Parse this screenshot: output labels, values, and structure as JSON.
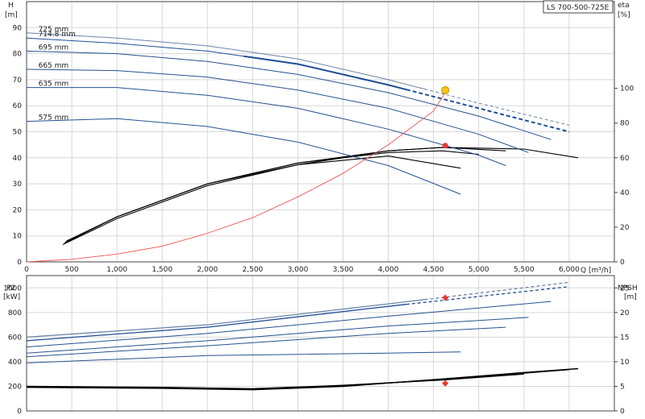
{
  "chart_data": [
    {
      "type": "line",
      "title": "LS 700-500-725E",
      "x_label": "Q [m³/h]",
      "y_label": "H\n[m]",
      "y2_label": "eta\n[%]",
      "xlim": [
        0,
        6500
      ],
      "ylim": [
        0,
        100
      ],
      "y2lim": [
        0,
        150
      ],
      "x_ticks": [
        "0",
        "500",
        "1,000",
        "1,500",
        "2,000",
        "2,500",
        "3,000",
        "3,500",
        "4,000",
        "4,500",
        "5,000",
        "5,500",
        "6,000"
      ],
      "x_tick_values": [
        0,
        500,
        1000,
        1500,
        2000,
        2500,
        3000,
        3500,
        4000,
        4500,
        5000,
        5500,
        6000
      ],
      "y_ticks": [
        "0",
        "10",
        "20",
        "30",
        "40",
        "50",
        "60",
        "70",
        "80",
        "90"
      ],
      "y_tick_values": [
        0,
        10,
        20,
        30,
        40,
        50,
        60,
        70,
        80,
        90
      ],
      "y2_ticks": [
        "0",
        "20",
        "40",
        "60",
        "80",
        "100"
      ],
      "y2_tick_values": [
        0,
        20,
        40,
        60,
        80,
        100
      ],
      "grid": true,
      "series": [
        {
          "name": "725 mm",
          "color": "#6a84a8",
          "dash_from": 4400,
          "points": [
            [
              0,
              88
            ],
            [
              1000,
              86
            ],
            [
              2000,
              83
            ],
            [
              3000,
              78
            ],
            [
              4000,
              70
            ],
            [
              5000,
              61
            ],
            [
              6000,
              52.5
            ]
          ]
        },
        {
          "name": "714.8 mm",
          "color": "#1f4e96",
          "bold_from": 2400,
          "dash_from": 4200,
          "points": [
            [
              0,
              86
            ],
            [
              1000,
              84
            ],
            [
              2000,
              81
            ],
            [
              3000,
              76
            ],
            [
              4000,
              68
            ],
            [
              5000,
              59
            ],
            [
              6000,
              50
            ]
          ]
        },
        {
          "name": "695 mm",
          "color": "#27528f",
          "points": [
            [
              0,
              81
            ],
            [
              1000,
              80
            ],
            [
              2000,
              77
            ],
            [
              3000,
              72
            ],
            [
              4000,
              65
            ],
            [
              5000,
              56
            ],
            [
              5800,
              47
            ]
          ]
        },
        {
          "name": "665 mm",
          "color": "#27528f",
          "points": [
            [
              0,
              74
            ],
            [
              1000,
              73.5
            ],
            [
              2000,
              71
            ],
            [
              3000,
              66
            ],
            [
              4000,
              59
            ],
            [
              5000,
              49
            ],
            [
              5550,
              42
            ]
          ]
        },
        {
          "name": "635 mm",
          "color": "#27528f",
          "points": [
            [
              0,
              67
            ],
            [
              1000,
              67
            ],
            [
              2000,
              64
            ],
            [
              3000,
              59
            ],
            [
              4000,
              51
            ],
            [
              5000,
              41
            ],
            [
              5300,
              37
            ]
          ]
        },
        {
          "name": "575 mm",
          "color": "#27528f",
          "points": [
            [
              0,
              54
            ],
            [
              1000,
              55
            ],
            [
              2000,
              52
            ],
            [
              3000,
              46
            ],
            [
              4000,
              37
            ],
            [
              4800,
              26
            ]
          ]
        },
        {
          "name": "",
          "color": "#ef5350",
          "role": "system-curve",
          "points": [
            [
              0,
              0
            ],
            [
              500,
              1
            ],
            [
              1000,
              3
            ],
            [
              1500,
              6
            ],
            [
              2000,
              11
            ],
            [
              2500,
              17
            ],
            [
              3000,
              25
            ],
            [
              3500,
              34
            ],
            [
              4000,
              45
            ],
            [
              4500,
              58
            ],
            [
              4650,
              66
            ]
          ]
        }
      ],
      "efficiency_curves": [
        {
          "color": "#000",
          "points": [
            [
              400,
              10
            ],
            [
              1000,
              25
            ],
            [
              2000,
              44
            ],
            [
              3000,
              56
            ],
            [
              4000,
              64
            ],
            [
              4600,
              66
            ],
            [
              5500,
              65
            ],
            [
              6100,
              60
            ]
          ]
        },
        {
          "color": "#000",
          "points": [
            [
              420,
              11
            ],
            [
              1000,
              26
            ],
            [
              2000,
              45
            ],
            [
              3000,
              57
            ],
            [
              4000,
              64
            ],
            [
              4600,
              66
            ],
            [
              5300,
              64
            ]
          ]
        },
        {
          "color": "#000",
          "points": [
            [
              440,
              12
            ],
            [
              1000,
              26
            ],
            [
              2000,
              45
            ],
            [
              3000,
              57
            ],
            [
              4000,
              63
            ],
            [
              4600,
              64
            ],
            [
              5000,
              62
            ]
          ]
        },
        {
          "color": "#000",
          "points": [
            [
              460,
              12
            ],
            [
              1000,
              26
            ],
            [
              2000,
              45
            ],
            [
              3000,
              56
            ],
            [
              4000,
              61
            ],
            [
              4800,
              54
            ]
          ]
        }
      ],
      "points": [
        {
          "name": "duty point",
          "x": 4630,
          "y": 66,
          "color": "#f5c518"
        },
        {
          "name": "efficiency point",
          "x": 4630,
          "y2": 67,
          "color": "#e53935"
        }
      ]
    },
    {
      "type": "line",
      "title": "",
      "y_label": "P2\n[kW]",
      "y2_label": "NPSH\n[m]",
      "xlim": [
        0,
        6500
      ],
      "ylim": [
        0,
        1100
      ],
      "y2lim": [
        0,
        27.5
      ],
      "y_ticks": [
        "0",
        "200",
        "400",
        "600",
        "800",
        "1000"
      ],
      "y_tick_values": [
        0,
        200,
        400,
        600,
        800,
        1000
      ],
      "y2_ticks": [
        "0",
        "5",
        "10",
        "15",
        "20",
        "25"
      ],
      "y2_tick_values": [
        0,
        5,
        10,
        15,
        20,
        25
      ],
      "grid": true,
      "power_curves": [
        {
          "color": "#6a84a8",
          "points": [
            [
              0,
              600
            ],
            [
              2000,
              700
            ],
            [
              4000,
              870
            ],
            [
              6000,
              1045
            ]
          ],
          "dash_from": 4400
        },
        {
          "color": "#1f4e96",
          "points": [
            [
              0,
              570
            ],
            [
              2000,
              680
            ],
            [
              4000,
              850
            ],
            [
              6000,
              1010
            ]
          ],
          "dash_from": 4200
        },
        {
          "color": "#27528f",
          "points": [
            [
              0,
              520
            ],
            [
              2000,
              630
            ],
            [
              4000,
              770
            ],
            [
              5800,
              890
            ]
          ]
        },
        {
          "color": "#27528f",
          "points": [
            [
              0,
              470
            ],
            [
              2000,
              570
            ],
            [
              4000,
              690
            ],
            [
              5550,
              760
            ]
          ]
        },
        {
          "color": "#27528f",
          "points": [
            [
              0,
              440
            ],
            [
              2000,
              530
            ],
            [
              4000,
              630
            ],
            [
              5300,
              680
            ]
          ]
        },
        {
          "color": "#27528f",
          "points": [
            [
              0,
              390
            ],
            [
              2000,
              450
            ],
            [
              4000,
              470
            ],
            [
              4800,
              480
            ]
          ]
        }
      ],
      "npsh_curves": [
        {
          "color": "#000",
          "points": [
            [
              0,
              4.8
            ],
            [
              1500,
              4.6
            ],
            [
              2500,
              4.3
            ],
            [
              3500,
              5.0
            ],
            [
              4600,
              6.5
            ],
            [
              5500,
              7.8
            ],
            [
              6100,
              8.6
            ]
          ]
        },
        {
          "color": "#000",
          "points": [
            [
              0,
              4.9
            ],
            [
              1500,
              4.7
            ],
            [
              2500,
              4.4
            ],
            [
              3500,
              5.1
            ],
            [
              4600,
              6.4
            ],
            [
              5500,
              7.7
            ],
            [
              6000,
              8.4
            ]
          ]
        },
        {
          "color": "#000",
          "points": [
            [
              0,
              5.0
            ],
            [
              1500,
              4.8
            ],
            [
              2500,
              4.5
            ],
            [
              3500,
              5.2
            ],
            [
              4600,
              6.3
            ],
            [
              5500,
              7.5
            ]
          ]
        }
      ],
      "points": [
        {
          "name": "power point",
          "x": 4630,
          "y": 920,
          "color": "#e53935"
        },
        {
          "name": "npsh point",
          "x": 4630,
          "y2": 5.6,
          "color": "#e53935"
        }
      ]
    }
  ]
}
